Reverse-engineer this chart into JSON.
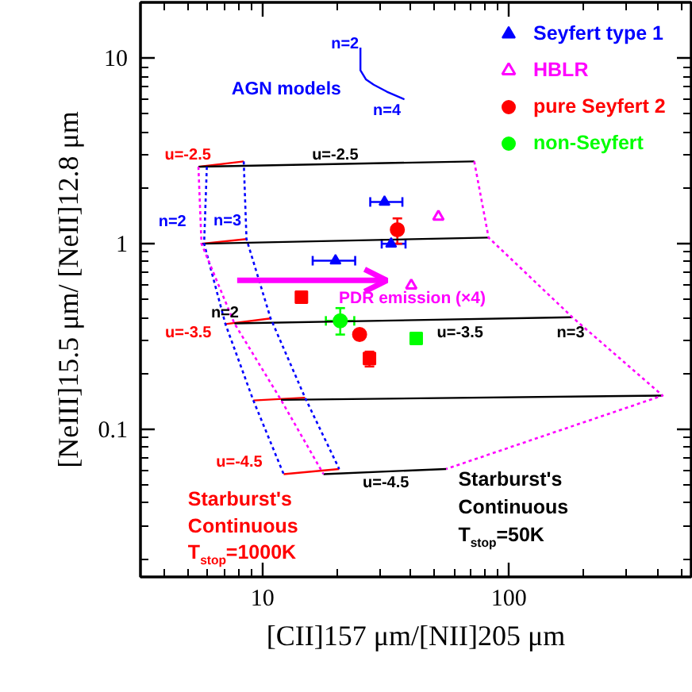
{
  "chart_data": {
    "type": "scatter",
    "xlabel": "[CII]157 μm/[NII]205 μm",
    "ylabel": "[NeIII]15.5 μm/ [NeII]12.8 μm",
    "log": "xy",
    "xlim": [
      3.2,
      550
    ],
    "ylim": [
      0.016,
      20
    ],
    "xticks": [
      {
        "value": 4,
        "label": null
      },
      {
        "value": 5,
        "label": null
      },
      {
        "value": 6,
        "label": null
      },
      {
        "value": 7,
        "label": null
      },
      {
        "value": 8,
        "label": null
      },
      {
        "value": 9,
        "label": null
      },
      10,
      {
        "value": 20,
        "label": null
      },
      {
        "value": 30,
        "label": null
      },
      {
        "value": 40,
        "label": null
      },
      {
        "value": 50,
        "label": null
      },
      {
        "value": 60,
        "label": null
      },
      {
        "value": 70,
        "label": null
      },
      {
        "value": 80,
        "label": null
      },
      {
        "value": 90,
        "label": null
      },
      100,
      {
        "value": 200,
        "label": null
      },
      {
        "value": 300,
        "label": null
      },
      {
        "value": 400,
        "label": null
      },
      {
        "value": 500,
        "label": null
      }
    ],
    "yticks": [
      {
        "value": 0.02,
        "label": null
      },
      {
        "value": 0.03,
        "label": null
      },
      {
        "value": 0.04,
        "label": null
      },
      {
        "value": 0.05,
        "label": null
      },
      {
        "value": 0.06,
        "label": null
      },
      {
        "value": 0.07,
        "label": null
      },
      {
        "value": 0.08,
        "label": null
      },
      {
        "value": 0.09,
        "label": null
      },
      0.1,
      {
        "value": 0.2,
        "label": null
      },
      {
        "value": 0.3,
        "label": null
      },
      {
        "value": 0.4,
        "label": null
      },
      {
        "value": 0.5,
        "label": null
      },
      {
        "value": 0.6,
        "label": null
      },
      {
        "value": 0.7,
        "label": null
      },
      {
        "value": 0.8,
        "label": null
      },
      {
        "value": 0.9,
        "label": null
      },
      1,
      {
        "value": 2,
        "label": null
      },
      {
        "value": 3,
        "label": null
      },
      {
        "value": 4,
        "label": null
      },
      {
        "value": 5,
        "label": null
      },
      {
        "value": 6,
        "label": null
      },
      {
        "value": 7,
        "label": null
      },
      {
        "value": 8,
        "label": null
      },
      {
        "value": 9,
        "label": null
      },
      10
    ],
    "legend": "top right",
    "series": [
      {
        "name": "Seyfert type 1",
        "marker": "triangle",
        "color": "#0000ff",
        "x": [
          31.3,
          19.8,
          33.3
        ],
        "values": [
          1.68,
          0.81,
          1.0
        ],
        "xerrors": [
          [
            27.4,
            37.0
          ],
          [
            16.0,
            23.8
          ],
          [
            30.5,
            38.1
          ]
        ]
      },
      {
        "name": "HBLR",
        "marker": "triangle",
        "color": "#ff00ff",
        "x": [
          51.8,
          40.2
        ],
        "values": [
          1.4,
          0.596
        ]
      },
      {
        "name": "pure Seyfert 2",
        "marker": "circle",
        "color": "#ff0000",
        "x": [
          35.3,
          24.8
        ],
        "values": [
          1.19,
          0.324
        ],
        "errors": [
          [
            1.0,
            1.37
          ],
          null
        ]
      },
      {
        "marker": "square",
        "color": "#ff0000",
        "x": [
          14.4,
          27.2
        ],
        "values": [
          0.515,
          0.241
        ],
        "errors": [
          null,
          [
            0.218,
            0.262
          ]
        ]
      },
      {
        "name": "non-Seyfert",
        "marker": "circle",
        "color": "#00ff00",
        "x": [
          20.7
        ],
        "values": [
          0.384
        ],
        "errors": [
          [
            0.324,
            0.45
          ]
        ],
        "xerrors": [
          [
            18.1,
            23.6
          ]
        ]
      },
      {
        "marker": "square",
        "color": "#00ff00",
        "x": [
          42.1
        ],
        "values": [
          0.309
        ]
      },
      {
        "name": "AGN models",
        "type": "line",
        "color": "#0000ff",
        "x": [
          25.0,
          25.0,
          26.3,
          28.3,
          32.0,
          37.7
        ],
        "values": [
          11.4,
          8.6,
          7.7,
          7.2,
          6.6,
          6.0
        ]
      },
      {
        "type": "line",
        "color": "#ff0000",
        "x": [
          5.5,
          8.4
        ],
        "values": [
          2.6,
          2.78
        ]
      },
      {
        "type": "line",
        "color": "#ff0000",
        "x": [
          5.66,
          8.62
        ],
        "values": [
          1.0,
          1.06
        ]
      },
      {
        "type": "line",
        "color": "#ff0000",
        "x": [
          7.08,
          10.8
        ],
        "values": [
          0.369,
          0.396
        ]
      },
      {
        "type": "line",
        "color": "#ff0000",
        "x": [
          9.19,
          14.9
        ],
        "values": [
          0.143,
          0.148
        ]
      },
      {
        "type": "line",
        "color": "#ff0000",
        "x": [
          12.2,
          20.5
        ],
        "values": [
          0.0573,
          0.0611
        ]
      },
      {
        "type": "line",
        "color": "#000000",
        "x": [
          5.5,
          72.4
        ],
        "values": [
          2.6,
          2.78
        ]
      },
      {
        "type": "line",
        "color": "#000000",
        "x": [
          5.66,
          82.8
        ],
        "values": [
          1.0,
          1.08
        ]
      },
      {
        "type": "line",
        "color": "#000000",
        "x": [
          7.7,
          181
        ],
        "values": [
          0.372,
          0.402
        ]
      },
      {
        "type": "line",
        "color": "#000000",
        "x": [
          11.9,
          421
        ],
        "values": [
          0.144,
          0.152
        ]
      },
      {
        "type": "line",
        "color": "#000000",
        "x": [
          17.7,
          55.7
        ],
        "values": [
          0.0573,
          0.0611
        ]
      },
      {
        "name": "n=2",
        "type": "line",
        "line_style": "dotted",
        "color": "#0000ff",
        "x": [
          5.95,
          5.8,
          7.08,
          9.19,
          12.2
        ],
        "values": [
          2.6,
          1.0,
          0.369,
          0.143,
          0.0573
        ]
      },
      {
        "name": "n=3",
        "type": "line",
        "line_style": "dotted",
        "color": "#0000ff",
        "x": [
          8.4,
          8.62,
          10.8,
          14.9,
          20.5
        ],
        "values": [
          2.78,
          1.06,
          0.396,
          0.148,
          0.0611
        ]
      },
      {
        "type": "line",
        "line_style": "dotted",
        "color": "#ff00ff",
        "x": [
          5.5,
          5.66,
          7.7,
          11.9,
          17.7
        ],
        "values": [
          2.6,
          1.0,
          0.372,
          0.144,
          0.0573
        ]
      },
      {
        "type": "line",
        "line_style": "dotted",
        "color": "#ff00ff",
        "x": [
          72.4,
          82.8,
          181,
          421,
          55.7
        ],
        "values": [
          2.78,
          1.08,
          0.402,
          0.152,
          0.0611
        ]
      },
      {
        "name": "PDR emission (×4)",
        "type": "line",
        "color": "#ff00ff",
        "x": [
          7.9,
          32.0
        ],
        "values": [
          0.635,
          0.635
        ]
      }
    ],
    "annotations": [
      {
        "text": "n=2",
        "x": 25.0,
        "y": 11.4
      },
      {
        "text": "n=4",
        "x": 37.7,
        "y": 6.0
      },
      {
        "text": "u=-2.5",
        "x": 5.5,
        "y": 2.6
      },
      {
        "text": "u=-2.5",
        "x": 18.6,
        "y": 2.68
      },
      {
        "text": "n=2",
        "x": 7.7,
        "y": 0.372
      },
      {
        "text": "u=-3.5",
        "x": 7.08,
        "y": 0.369
      },
      {
        "text": "u=-3.5",
        "x": 63.4,
        "y": 0.39
      },
      {
        "text": "n=3",
        "x": 181,
        "y": 0.402
      },
      {
        "text": "u=-4.5",
        "x": 12.2,
        "y": 0.0573
      },
      {
        "text": "u=-4.5",
        "x": 31.7,
        "y": 0.059
      },
      {
        "text": "Starburst's Continuous T$_{stop}$=1000K",
        "x": 12.2,
        "y": 0.0573
      },
      {
        "text": "Starburst's Continuous T$_{stop}$=50K",
        "x": 55.7,
        "y": 0.0611
      }
    ]
  }
}
